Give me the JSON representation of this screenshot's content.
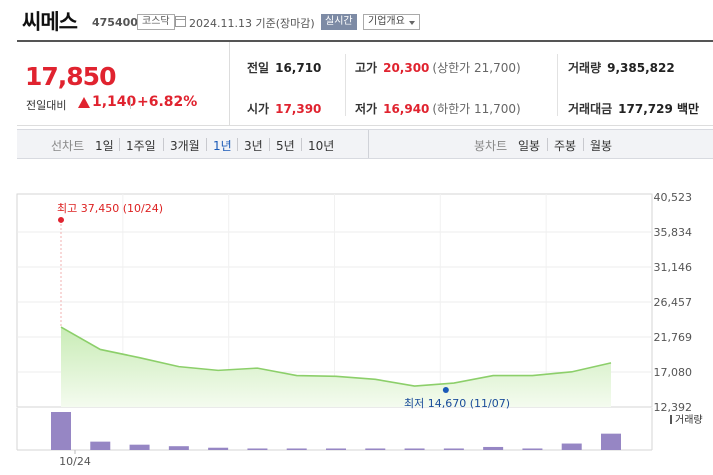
{
  "header": {
    "name": "씨메스",
    "code": "475400",
    "market": "코스닥",
    "date": "2024.11.13  기준(장마감)",
    "realtime_label": "실시간",
    "company_button": "기업개요"
  },
  "price": {
    "current": "17,850",
    "change_label": "전일대비",
    "change_amount": "1,140",
    "change_percent": "+6.82%"
  },
  "stats": {
    "prev_label": "전일",
    "prev_value": "16,710",
    "high_label": "고가",
    "high_value": "20,300",
    "upper_limit": "(상한가 21,700)",
    "volume_label": "거래량",
    "volume_value": "9,385,822",
    "open_label": "시가",
    "open_value": "17,390",
    "low_label": "저가",
    "low_value": "16,940",
    "lower_limit": "(하한가 11,700)",
    "amount_label": "거래대금",
    "amount_value": "177,729 백만"
  },
  "toolbar": {
    "line_chart_label": "선차트",
    "periods": [
      "1일",
      "1주일",
      "3개월",
      "1년",
      "3년",
      "5년",
      "10년"
    ],
    "selected_period": "1년",
    "candle_chart_label": "봉차트",
    "candles": [
      "일봉",
      "주봉",
      "월봉"
    ]
  },
  "chart_data": {
    "type": "line",
    "y_ticks": [
      "40,523",
      "35,834",
      "31,146",
      "26,457",
      "21,769",
      "17,080",
      "12,392"
    ],
    "ylim": [
      12392,
      40523
    ],
    "values": [
      23100,
      20100,
      19000,
      17800,
      17300,
      17600,
      16600,
      16500,
      16100,
      15200,
      15600,
      16600,
      16600,
      17100,
      18300
    ],
    "volume": [
      100,
      22,
      14,
      10,
      6,
      4,
      4,
      4,
      4,
      4,
      4,
      8,
      4,
      17,
      43
    ],
    "x_label": "10/24",
    "high_annotation": "최고 37,450 (10/24)",
    "high_value": 37450,
    "low_annotation": "최저 14,670 (11/07)",
    "low_value": 14670,
    "low_index": 10,
    "volume_legend": "거래량",
    "line_color": "#8ccf6a",
    "bar_color": "#9686c4",
    "grid": true
  }
}
